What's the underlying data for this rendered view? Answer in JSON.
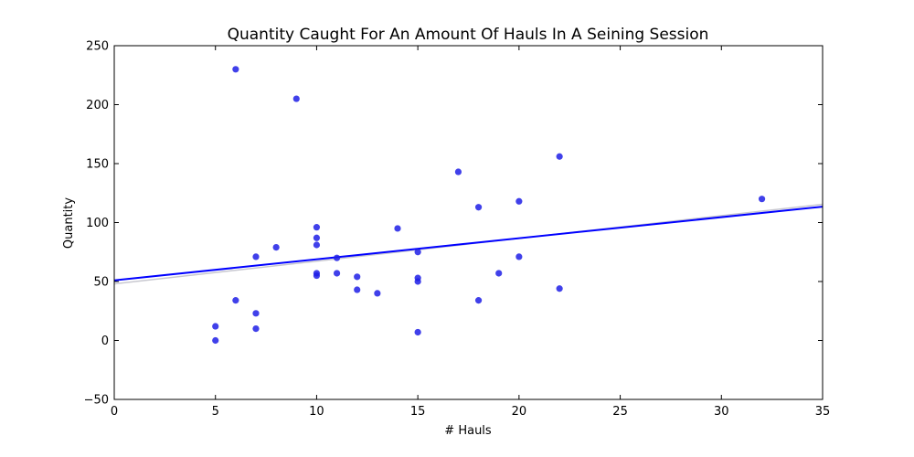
{
  "chart_data": {
    "type": "scatter",
    "title": "Quantity Caught For An Amount Of Hauls In A Seining Session",
    "xlabel": "# Hauls",
    "ylabel": "Quantity",
    "xlim": [
      0,
      35
    ],
    "ylim": [
      -50,
      250
    ],
    "xticks": [
      0,
      5,
      10,
      15,
      20,
      25,
      30,
      35
    ],
    "yticks": [
      -50,
      0,
      50,
      100,
      150,
      200,
      250
    ],
    "grid": false,
    "point_color": "#1f1fe6",
    "line_color": "#0000ff",
    "ci_line_color": "#c8c8d0",
    "points": [
      {
        "x": 5,
        "y": 12
      },
      {
        "x": 5,
        "y": 0
      },
      {
        "x": 6,
        "y": 230
      },
      {
        "x": 6,
        "y": 34
      },
      {
        "x": 7,
        "y": 71
      },
      {
        "x": 7,
        "y": 23
      },
      {
        "x": 7,
        "y": 10
      },
      {
        "x": 8,
        "y": 79
      },
      {
        "x": 9,
        "y": 205
      },
      {
        "x": 10,
        "y": 96
      },
      {
        "x": 10,
        "y": 87
      },
      {
        "x": 10,
        "y": 81
      },
      {
        "x": 10,
        "y": 57
      },
      {
        "x": 10,
        "y": 55
      },
      {
        "x": 11,
        "y": 70
      },
      {
        "x": 11,
        "y": 57
      },
      {
        "x": 12,
        "y": 54
      },
      {
        "x": 12,
        "y": 43
      },
      {
        "x": 13,
        "y": 40
      },
      {
        "x": 14,
        "y": 95
      },
      {
        "x": 15,
        "y": 75
      },
      {
        "x": 15,
        "y": 53
      },
      {
        "x": 15,
        "y": 50
      },
      {
        "x": 15,
        "y": 7
      },
      {
        "x": 17,
        "y": 143
      },
      {
        "x": 18,
        "y": 113
      },
      {
        "x": 18,
        "y": 34
      },
      {
        "x": 19,
        "y": 57
      },
      {
        "x": 20,
        "y": 118
      },
      {
        "x": 20,
        "y": 71
      },
      {
        "x": 22,
        "y": 156
      },
      {
        "x": 22,
        "y": 44
      },
      {
        "x": 32,
        "y": 120
      }
    ],
    "regression_line": {
      "x0": 0,
      "y0": 51,
      "x1": 35,
      "y1": 113.5
    },
    "ci_line": {
      "x0": 0,
      "y0": 48,
      "x1": 35,
      "y1": 115.5
    }
  }
}
